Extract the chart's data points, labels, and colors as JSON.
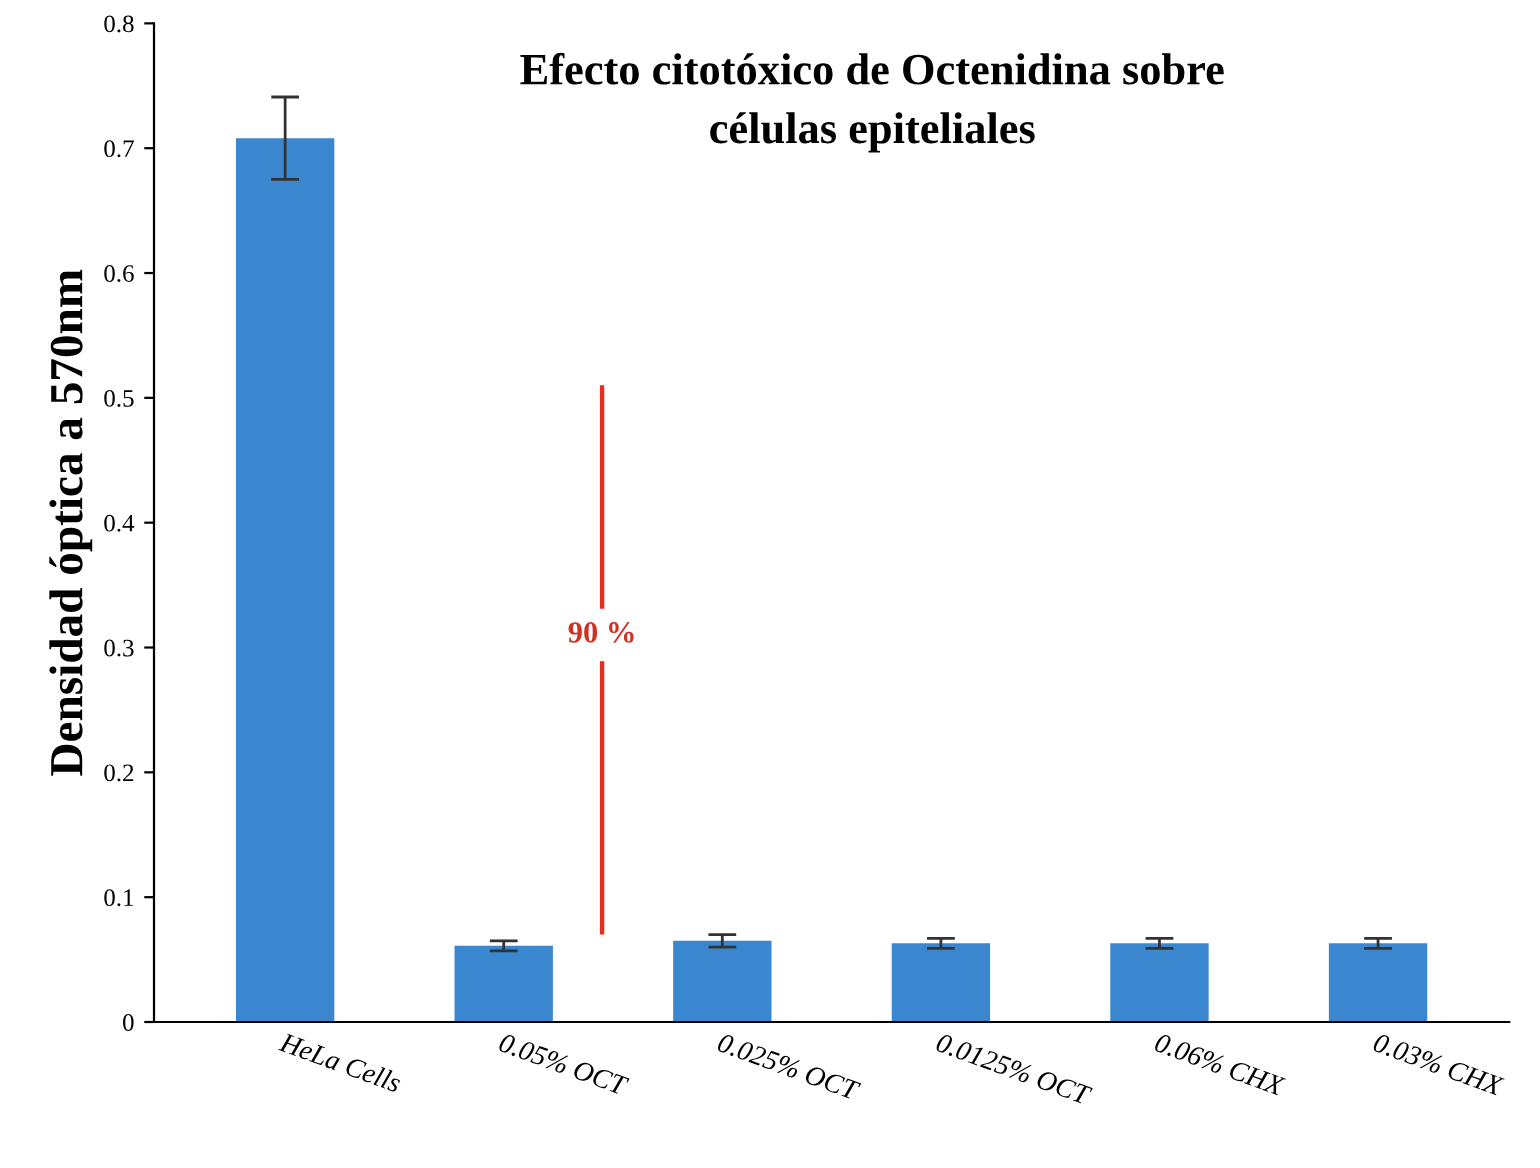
{
  "chart_data": {
    "type": "bar",
    "title": "Efecto citotóxico de Octenidina sobre\ncélulas epiteliales",
    "ylabel": "Densidad óptica a 570nm",
    "categories": [
      "HeLa Cells",
      "0.05% OCT",
      "0.025% OCT",
      "0.0125% OCT",
      "0.06% CHX",
      "0.03% CHX"
    ],
    "values": [
      0.708,
      0.061,
      0.065,
      0.063,
      0.063,
      0.063
    ],
    "errors": [
      0.033,
      0.004,
      0.005,
      0.004,
      0.004,
      0.004
    ],
    "color": "#3a87d0",
    "ylim": [
      0,
      0.8
    ],
    "yticks": [
      0,
      0.1,
      0.2,
      0.3,
      0.4,
      0.5,
      0.6,
      0.7,
      0.8
    ],
    "grid": false,
    "annotations": [
      "90 %"
    ]
  }
}
